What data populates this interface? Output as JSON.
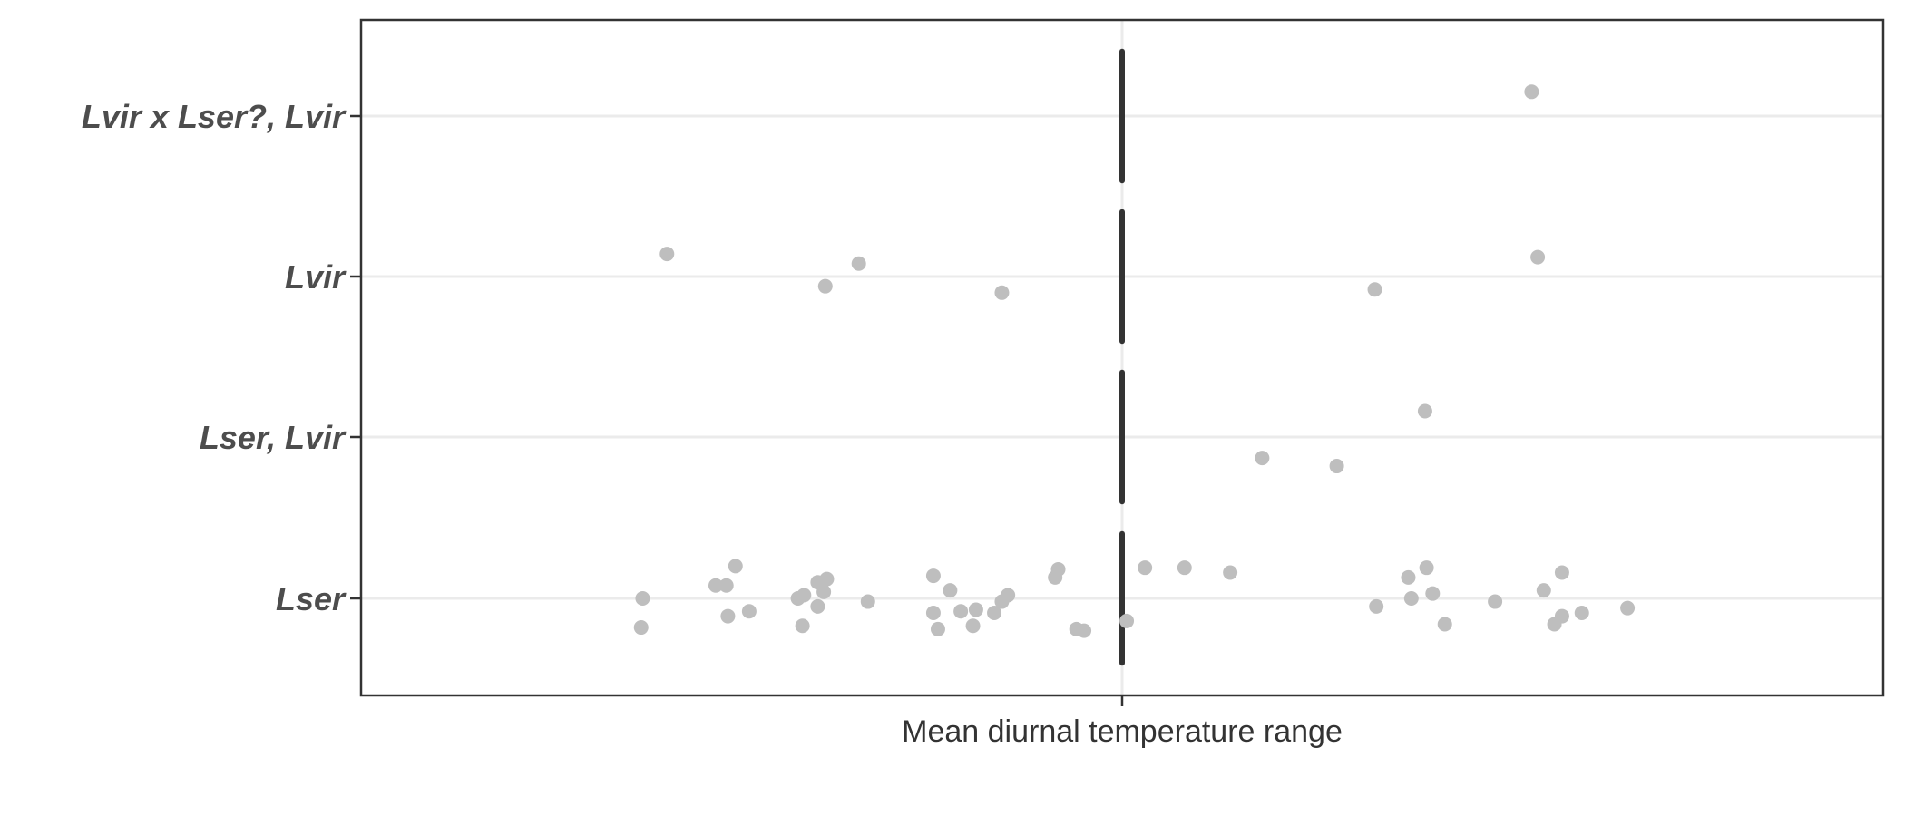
{
  "chart_data": {
    "type": "scatter",
    "xlabel": "Mean diurnal temperature range",
    "ylabel": "",
    "categories": [
      "Lser",
      "Lser, Lvir",
      "Lvir",
      "Lvir x Lser?, Lvir"
    ],
    "xlim": [
      0,
      100
    ],
    "reference_line_x": 50,
    "grid": "horizontal",
    "colors": {
      "points": "#bebebe",
      "reference": "#333333",
      "grid": "#ebebeb",
      "border": "#333333"
    },
    "points": [
      {
        "category": "Lser",
        "x": 18.5,
        "y": 0.0
      },
      {
        "category": "Lser",
        "x": 18.4,
        "y": -0.18
      },
      {
        "category": "Lser",
        "x": 23.3,
        "y": 0.08
      },
      {
        "category": "Lser",
        "x": 24.0,
        "y": 0.08
      },
      {
        "category": "Lser",
        "x": 24.6,
        "y": 0.2
      },
      {
        "category": "Lser",
        "x": 24.1,
        "y": -0.11
      },
      {
        "category": "Lser",
        "x": 25.5,
        "y": -0.08
      },
      {
        "category": "Lser",
        "x": 28.7,
        "y": 0.0
      },
      {
        "category": "Lser",
        "x": 29.1,
        "y": 0.02
      },
      {
        "category": "Lser",
        "x": 29.0,
        "y": -0.17
      },
      {
        "category": "Lser",
        "x": 30.0,
        "y": 0.1
      },
      {
        "category": "Lser",
        "x": 30.6,
        "y": 0.12
      },
      {
        "category": "Lser",
        "x": 30.4,
        "y": 0.04
      },
      {
        "category": "Lser",
        "x": 30.0,
        "y": -0.05
      },
      {
        "category": "Lser",
        "x": 33.3,
        "y": -0.02
      },
      {
        "category": "Lser",
        "x": 37.6,
        "y": 0.14
      },
      {
        "category": "Lser",
        "x": 38.7,
        "y": 0.05
      },
      {
        "category": "Lser",
        "x": 37.6,
        "y": -0.09
      },
      {
        "category": "Lser",
        "x": 37.9,
        "y": -0.19
      },
      {
        "category": "Lser",
        "x": 39.4,
        "y": -0.08
      },
      {
        "category": "Lser",
        "x": 40.4,
        "y": -0.07
      },
      {
        "category": "Lser",
        "x": 40.2,
        "y": -0.17
      },
      {
        "category": "Lser",
        "x": 41.6,
        "y": -0.09
      },
      {
        "category": "Lser",
        "x": 42.1,
        "y": -0.02
      },
      {
        "category": "Lser",
        "x": 42.5,
        "y": 0.02
      },
      {
        "category": "Lser",
        "x": 45.6,
        "y": 0.13
      },
      {
        "category": "Lser",
        "x": 45.8,
        "y": 0.18
      },
      {
        "category": "Lser",
        "x": 47.0,
        "y": -0.19
      },
      {
        "category": "Lser",
        "x": 47.5,
        "y": -0.2
      },
      {
        "category": "Lser",
        "x": 50.3,
        "y": -0.14
      },
      {
        "category": "Lser",
        "x": 51.5,
        "y": 0.19
      },
      {
        "category": "Lser",
        "x": 54.1,
        "y": 0.19
      },
      {
        "category": "Lser",
        "x": 57.1,
        "y": 0.16
      },
      {
        "category": "Lser",
        "x": 66.7,
        "y": -0.05
      },
      {
        "category": "Lser",
        "x": 68.8,
        "y": 0.13
      },
      {
        "category": "Lser",
        "x": 69.0,
        "y": -0.0
      },
      {
        "category": "Lser",
        "x": 70.0,
        "y": 0.19
      },
      {
        "category": "Lser",
        "x": 70.4,
        "y": 0.03
      },
      {
        "category": "Lser",
        "x": 71.2,
        "y": -0.16
      },
      {
        "category": "Lser",
        "x": 74.5,
        "y": -0.02
      },
      {
        "category": "Lser",
        "x": 77.7,
        "y": 0.05
      },
      {
        "category": "Lser",
        "x": 78.4,
        "y": -0.16
      },
      {
        "category": "Lser",
        "x": 78.9,
        "y": -0.11
      },
      {
        "category": "Lser",
        "x": 78.9,
        "y": 0.16
      },
      {
        "category": "Lser",
        "x": 80.2,
        "y": -0.09
      },
      {
        "category": "Lser",
        "x": 83.2,
        "y": -0.06
      },
      {
        "category": "Lser, Lvir",
        "x": 59.2,
        "y": -0.13
      },
      {
        "category": "Lser, Lvir",
        "x": 64.1,
        "y": -0.18
      },
      {
        "category": "Lser, Lvir",
        "x": 69.9,
        "y": 0.16
      },
      {
        "category": "Lvir",
        "x": 20.1,
        "y": 0.14
      },
      {
        "category": "Lvir",
        "x": 30.5,
        "y": -0.06
      },
      {
        "category": "Lvir",
        "x": 32.7,
        "y": 0.08
      },
      {
        "category": "Lvir",
        "x": 42.1,
        "y": -0.1
      },
      {
        "category": "Lvir",
        "x": 66.6,
        "y": -0.08
      },
      {
        "category": "Lvir",
        "x": 77.3,
        "y": 0.12
      },
      {
        "category": "Lvir x Lser?, Lvir",
        "x": 76.9,
        "y": 0.15
      }
    ]
  }
}
